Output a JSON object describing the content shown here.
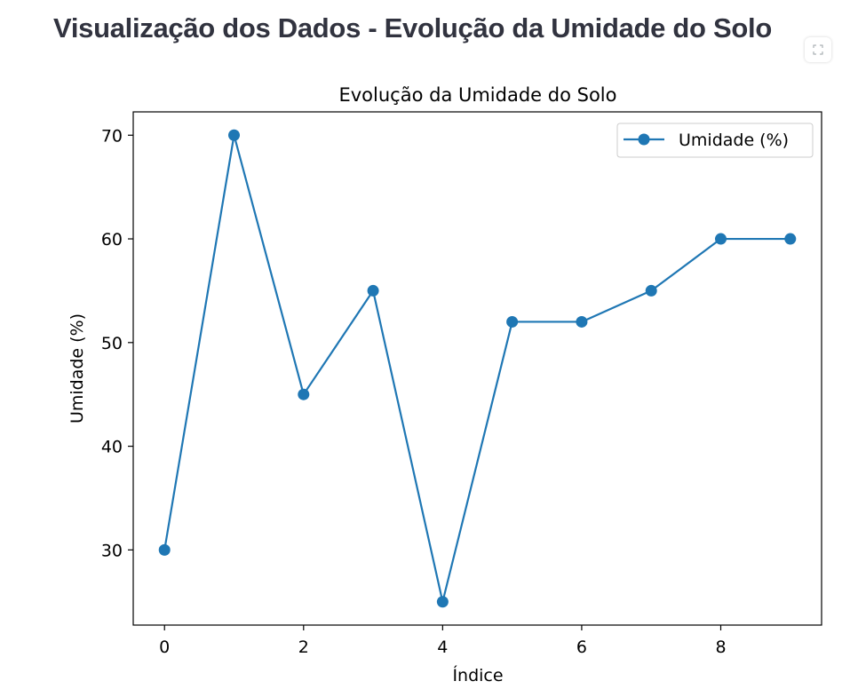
{
  "header": {
    "title": "Visualização dos Dados - Evolução da Umidade do Solo"
  },
  "toolbar": {
    "fullscreen_icon": "expand-icon"
  },
  "colors": {
    "series": "#1f77b4",
    "text": "#000000",
    "heading": "#31333f"
  },
  "chart_data": {
    "type": "line",
    "title": "Evolução da Umidade do Solo",
    "xlabel": "Índice",
    "ylabel": "Umidade (%)",
    "x": [
      0,
      1,
      2,
      3,
      4,
      5,
      6,
      7,
      8,
      9
    ],
    "series": [
      {
        "name": "Umidade (%)",
        "values": [
          30,
          70,
          45,
          55,
          25,
          52,
          52,
          55,
          60,
          60
        ],
        "marker": "circle"
      }
    ],
    "xticks": [
      0,
      2,
      4,
      6,
      8
    ],
    "yticks": [
      30,
      40,
      50,
      60,
      70
    ],
    "xlim": [
      -0.45,
      9.45
    ],
    "ylim": [
      22.75,
      72.25
    ],
    "grid": false,
    "legend_position": "top-right"
  }
}
